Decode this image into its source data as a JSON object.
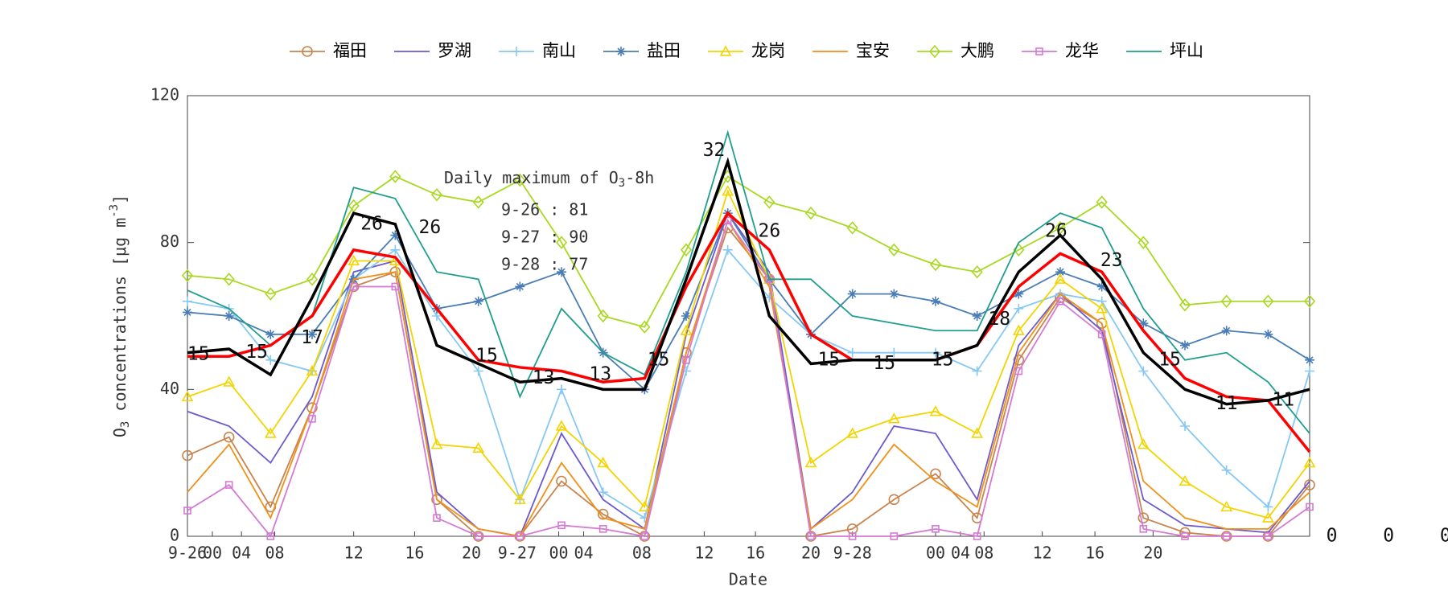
{
  "chart_data": {
    "type": "line",
    "xlabel": "Date",
    "ylabel": {
      "main": "O",
      "sub": "3",
      "rest": " concentrations [μg m",
      "sup": "-3",
      "end": "]"
    },
    "xlim": [
      0,
      81
    ],
    "ylim": [
      0,
      120
    ],
    "yticks": [
      0,
      40,
      80,
      120
    ],
    "xticks": [
      {
        "value": 0,
        "label": "9-26"
      },
      {
        "value": 1.8,
        "label": "00"
      },
      {
        "value": 3.9,
        "label": "04"
      },
      {
        "value": 6.3,
        "label": "08"
      },
      {
        "value": 12,
        "label": "12"
      },
      {
        "value": 16.4,
        "label": "16"
      },
      {
        "value": 20.5,
        "label": "20"
      },
      {
        "value": 23.8,
        "label": "9-27"
      },
      {
        "value": 26.8,
        "label": "00"
      },
      {
        "value": 28.6,
        "label": "04"
      },
      {
        "value": 32.8,
        "label": "08"
      },
      {
        "value": 37.3,
        "label": "12"
      },
      {
        "value": 41,
        "label": "16"
      },
      {
        "value": 45,
        "label": "20"
      },
      {
        "value": 48,
        "label": "9-28"
      },
      {
        "value": 54,
        "label": "00"
      },
      {
        "value": 55.8,
        "label": "04"
      },
      {
        "value": 57.5,
        "label": "08"
      },
      {
        "value": 61.7,
        "label": "12"
      },
      {
        "value": 65.5,
        "label": "16"
      },
      {
        "value": 69.7,
        "label": "20"
      }
    ],
    "x": [
      0,
      3,
      6,
      9,
      12,
      15,
      18,
      21,
      24,
      27,
      30,
      33,
      36,
      39,
      42,
      45,
      48,
      51,
      54,
      57,
      60,
      63,
      66,
      69,
      72,
      75,
      78,
      81
    ],
    "series": [
      {
        "name": "福田",
        "color": "#c8844e",
        "marker": "circle",
        "values": [
          22,
          27,
          8,
          35,
          68,
          72,
          10,
          0,
          0,
          15,
          6,
          0,
          50,
          84,
          70,
          0,
          2,
          10,
          17,
          5,
          48,
          65,
          58,
          5,
          1,
          0,
          0,
          14
        ]
      },
      {
        "name": "罗湖",
        "color": "#6a5acd",
        "marker": "none",
        "values": [
          34,
          30,
          20,
          38,
          72,
          75,
          12,
          2,
          0,
          28,
          10,
          2,
          55,
          88,
          72,
          2,
          12,
          30,
          28,
          10,
          52,
          66,
          56,
          10,
          3,
          2,
          1,
          15
        ]
      },
      {
        "name": "南山",
        "color": "#86c8f2",
        "marker": "plus",
        "values": [
          64,
          62,
          48,
          45,
          70,
          78,
          60,
          45,
          10,
          40,
          12,
          5,
          45,
          78,
          65,
          55,
          50,
          50,
          50,
          45,
          62,
          66,
          64,
          45,
          30,
          18,
          8,
          45
        ]
      },
      {
        "name": "盐田",
        "color": "#4a7db5",
        "marker": "star",
        "values": [
          61,
          60,
          55,
          55,
          70,
          82,
          62,
          64,
          68,
          72,
          50,
          40,
          60,
          88,
          70,
          55,
          66,
          66,
          64,
          60,
          66,
          72,
          68,
          58,
          52,
          56,
          55,
          48
        ]
      },
      {
        "name": "龙岗",
        "color": "#f2d400",
        "marker": "triangle",
        "values": [
          38,
          42,
          28,
          45,
          75,
          75,
          25,
          24,
          10,
          30,
          20,
          8,
          56,
          94,
          70,
          20,
          28,
          32,
          34,
          28,
          56,
          70,
          62,
          25,
          15,
          8,
          5,
          20
        ]
      },
      {
        "name": "宝安",
        "color": "#f0901a",
        "marker": "none",
        "values": [
          12,
          25,
          5,
          35,
          70,
          72,
          10,
          2,
          0,
          20,
          5,
          2,
          50,
          86,
          68,
          2,
          10,
          25,
          15,
          8,
          50,
          66,
          58,
          15,
          5,
          2,
          2,
          12
        ]
      },
      {
        "name": "大鹏",
        "color": "#a8d820",
        "marker": "diamond",
        "values": [
          71,
          70,
          66,
          70,
          90,
          98,
          93,
          91,
          97,
          80,
          60,
          57,
          78,
          98,
          91,
          88,
          84,
          78,
          74,
          72,
          78,
          84,
          91,
          80,
          63,
          64,
          64,
          64
        ]
      },
      {
        "name": "龙华",
        "color": "#d47ad4",
        "marker": "square",
        "values": [
          7,
          14,
          0,
          32,
          68,
          68,
          5,
          0,
          0,
          3,
          2,
          0,
          48,
          86,
          70,
          0,
          0,
          0,
          2,
          0,
          45,
          64,
          55,
          2,
          0,
          0,
          0,
          8
        ]
      },
      {
        "name": "坪山",
        "color": "#1f9e8e",
        "marker": "none",
        "values": [
          67,
          62,
          52,
          60,
          95,
          92,
          72,
          70,
          38,
          62,
          50,
          44,
          72,
          110,
          70,
          70,
          60,
          58,
          56,
          56,
          80,
          88,
          84,
          62,
          48,
          50,
          42,
          28
        ]
      }
    ],
    "mean_lines": [
      {
        "color": "#ff0000",
        "values": [
          49,
          49,
          52,
          60,
          78,
          76,
          62,
          48,
          46,
          45,
          42,
          43,
          68,
          88,
          78,
          55,
          48,
          48,
          48,
          52,
          68,
          77,
          72,
          56,
          43,
          38,
          37,
          23
        ]
      },
      {
        "color": "#000000",
        "values": [
          50,
          51,
          44,
          65,
          88,
          85,
          52,
          47,
          42,
          43,
          40,
          40,
          70,
          102,
          60,
          47,
          48,
          48,
          48,
          52,
          72,
          82,
          70,
          50,
          40,
          36,
          37,
          40
        ]
      }
    ],
    "annotations": [
      {
        "text": "15",
        "x": 0.8,
        "y": 49.5
      },
      {
        "text": "15",
        "x": 5,
        "y": 50
      },
      {
        "text": "17",
        "x": 9,
        "y": 54
      },
      {
        "text": "26",
        "x": 13.3,
        "y": 85
      },
      {
        "text": "26",
        "x": 17.5,
        "y": 84
      },
      {
        "text": "15",
        "x": 21.6,
        "y": 49
      },
      {
        "text": "13",
        "x": 25.7,
        "y": 43
      },
      {
        "text": "13",
        "x": 29.8,
        "y": 44
      },
      {
        "text": "15",
        "x": 34,
        "y": 48
      },
      {
        "text": "32",
        "x": 38,
        "y": 105
      },
      {
        "text": "26",
        "x": 42,
        "y": 83
      },
      {
        "text": "15",
        "x": 46.3,
        "y": 48
      },
      {
        "text": "15",
        "x": 50.3,
        "y": 47
      },
      {
        "text": "15",
        "x": 54.5,
        "y": 48
      },
      {
        "text": "18",
        "x": 58.6,
        "y": 59
      },
      {
        "text": "26",
        "x": 62.7,
        "y": 83
      },
      {
        "text": "23",
        "x": 66.7,
        "y": 75
      },
      {
        "text": "15",
        "x": 70.9,
        "y": 48
      },
      {
        "text": "11",
        "x": 75,
        "y": 36
      },
      {
        "text": "11",
        "x": 79.1,
        "y": 37
      },
      {
        "text": "0",
        "x": 82.6,
        "y": 0
      },
      {
        "text": "0",
        "x": 86.7,
        "y": 0
      },
      {
        "text": "0",
        "x": 90.8,
        "y": 0
      }
    ],
    "box": {
      "title": {
        "main": "Daily maximum of O",
        "sub": "3",
        "rest": "-8h"
      },
      "lines": [
        "9-26 : 81",
        "9-27 : 90",
        "9-28 : 77"
      ]
    }
  }
}
